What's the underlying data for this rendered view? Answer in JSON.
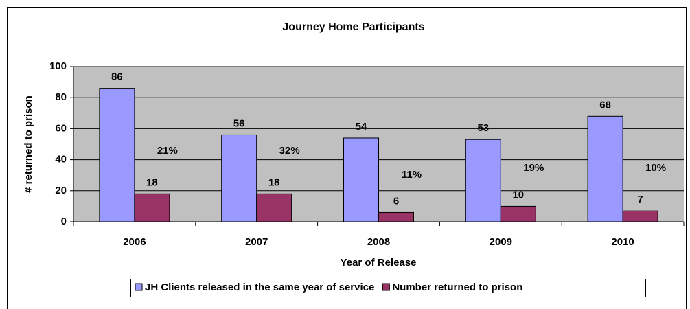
{
  "chart_data": {
    "type": "bar",
    "title": "Journey Home Participants",
    "x_label": "Year of Release",
    "y_label": "# returned to prison",
    "categories": [
      "2006",
      "2007",
      "2008",
      "2009",
      "2010"
    ],
    "series": [
      {
        "name": "JH Clients released in the same year of service",
        "color": "#9999ff",
        "values": [
          86,
          56,
          54,
          53,
          68
        ]
      },
      {
        "name": "Number returned to prison",
        "color": "#993366",
        "values": [
          18,
          18,
          6,
          10,
          7
        ]
      }
    ],
    "annotations": [
      "21%",
      "32%",
      "11%",
      "19%",
      "10%"
    ],
    "ylim": [
      0,
      100
    ],
    "yticks": [
      0,
      20,
      40,
      60,
      80,
      100
    ],
    "grid": true,
    "legend": "bottom"
  }
}
